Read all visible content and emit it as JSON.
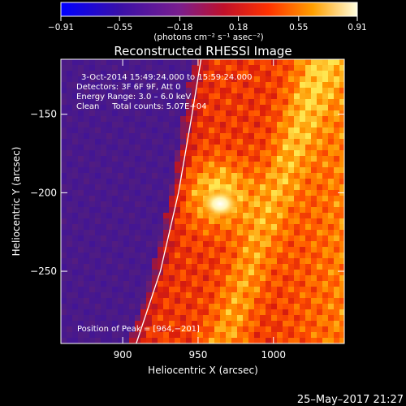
{
  "chart_data": {
    "type": "heatmap",
    "title": "Reconstructed RHESSI Image",
    "xlabel": "Heliocentric X (arcsec)",
    "ylabel": "Heliocentric Y (arcsec)",
    "xlim": [
      859,
      1047
    ],
    "ylim": [
      -296,
      -115
    ],
    "x_ticks": [
      900,
      950,
      1000
    ],
    "y_ticks": [
      -150,
      -200,
      -250
    ],
    "colorbar": {
      "label": "(photons cm⁻² s⁻¹ asec⁻²)",
      "range": [
        -0.91,
        0.91
      ],
      "ticks": [
        "−0.91",
        "−0.55",
        "−0.18",
        "0.18",
        "0.55",
        "0.91"
      ],
      "tick_values": [
        -0.91,
        -0.55,
        -0.18,
        0.18,
        0.55,
        0.91
      ]
    },
    "info_lines": [
      "3-Oct-2014 15:49:24.000 to 15:59:24.000",
      "Detectors: 3F 6F 9F, Att 0",
      "Energy Range: 3.0 – 6.0 keV",
      "Clean     Total counts: 5.07E+04"
    ],
    "peak_label": "Position of Peak = [964,−201]",
    "peak": [
      964,
      -201
    ],
    "limb_points": [
      [
        909,
        -296
      ],
      [
        925,
        -250
      ],
      [
        937,
        -200
      ],
      [
        946,
        -150
      ],
      [
        952,
        -115
      ]
    ],
    "tick_labels": {
      "x": [
        "900",
        "950",
        "1000"
      ],
      "y": [
        "−150",
        "−200",
        "−250"
      ]
    },
    "footer_date": "25–May–2017 21:27"
  }
}
